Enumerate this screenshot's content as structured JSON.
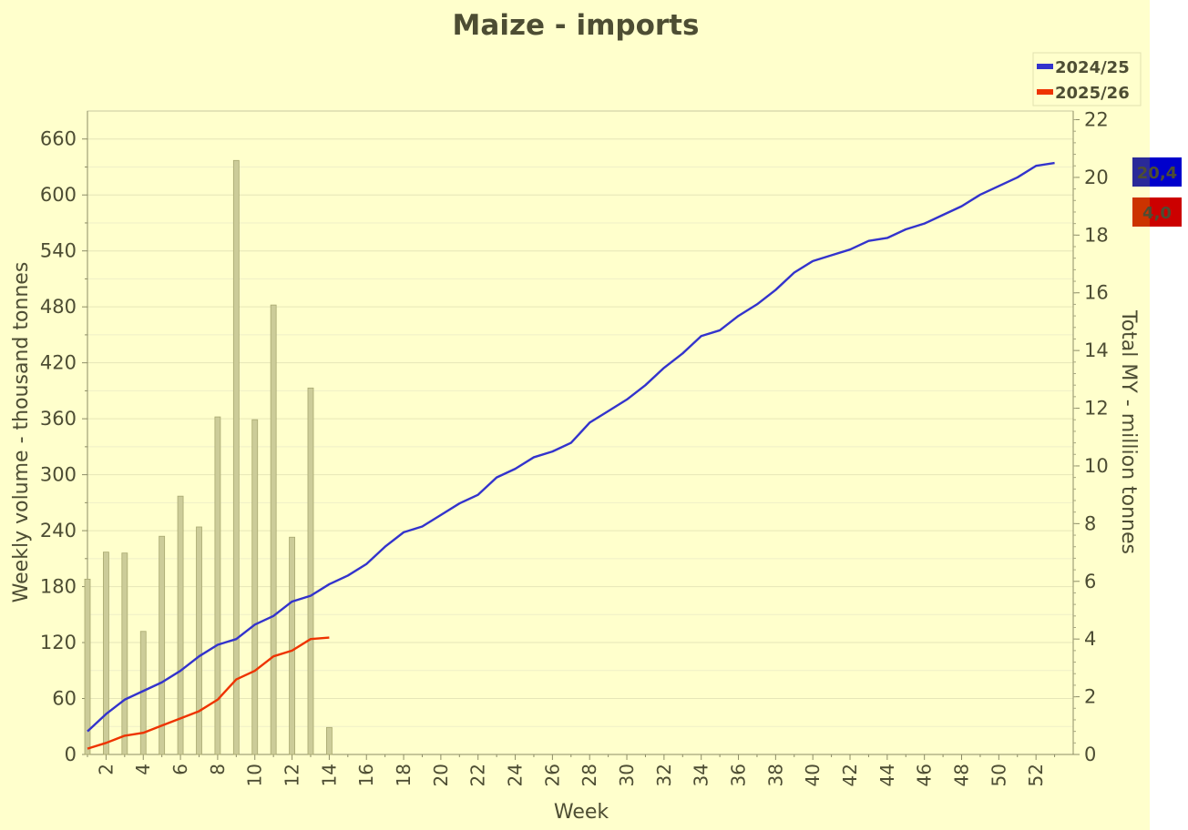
{
  "chart_data": {
    "type": "bar+line",
    "title": "Maize - imports",
    "xlabel": "Week",
    "ylabel_left": "Weekly volume - thousand tonnes",
    "ylabel_right": "Total MY - million tonnes",
    "x_ticks": [
      "2",
      "4",
      "6",
      "8",
      "10",
      "12",
      "14",
      "16",
      "18",
      "20",
      "22",
      "24",
      "26",
      "28",
      "30",
      "32",
      "34",
      "36",
      "38",
      "40",
      "42",
      "44",
      "46",
      "48",
      "50",
      "52"
    ],
    "y_left_ticks": [
      "0",
      "60",
      "120",
      "180",
      "240",
      "300",
      "360",
      "420",
      "480",
      "540",
      "600",
      "660"
    ],
    "y_right_ticks": [
      "0",
      "2",
      "4",
      "6",
      "8",
      "10",
      "12",
      "14",
      "16",
      "18",
      "20",
      "22"
    ],
    "ylim_left": [
      0,
      690
    ],
    "ylim_right": [
      0,
      22.3
    ],
    "weeks": [
      1,
      2,
      3,
      4,
      5,
      6,
      7,
      8,
      9,
      10,
      11,
      12,
      13,
      14,
      15,
      16,
      17,
      18,
      19,
      20,
      21,
      22,
      23,
      24,
      25,
      26,
      27,
      28,
      29,
      30,
      31,
      32,
      33,
      34,
      35,
      36,
      37,
      38,
      39,
      40,
      41,
      42,
      43,
      44,
      45,
      46,
      47,
      48,
      49,
      50,
      51,
      52,
      53
    ],
    "bars": {
      "name": "2025/26 weekly",
      "weeks": [
        1,
        2,
        3,
        4,
        5,
        6,
        7,
        8,
        9,
        10,
        11,
        12,
        13,
        14
      ],
      "values": [
        188,
        217,
        216,
        132,
        234,
        277,
        244,
        362,
        637,
        359,
        482,
        233,
        393,
        29
      ],
      "color": "#cccc99"
    },
    "series": [
      {
        "name": "2024/25",
        "color": "#3333cc",
        "values": [
          0.8,
          1.4,
          1.9,
          2.2,
          2.5,
          2.9,
          3.4,
          3.8,
          4.0,
          4.5,
          4.8,
          5.3,
          5.5,
          5.9,
          6.2,
          6.6,
          7.2,
          7.7,
          7.9,
          8.3,
          8.7,
          9.0,
          9.6,
          9.9,
          10.3,
          10.5,
          10.8,
          11.5,
          11.9,
          12.3,
          12.8,
          13.4,
          13.9,
          14.5,
          14.7,
          15.2,
          15.6,
          16.1,
          16.7,
          17.1,
          17.3,
          17.5,
          17.8,
          17.9,
          18.2,
          18.4,
          18.7,
          19.0,
          19.4,
          19.7,
          20.0,
          20.4,
          20.5
        ],
        "marker_label": "20,4"
      },
      {
        "name": "2025/26",
        "color": "#ee3300",
        "values": [
          0.2,
          0.4,
          0.65,
          0.75,
          1.0,
          1.25,
          1.5,
          1.9,
          2.6,
          2.9,
          3.4,
          3.6,
          4.0,
          4.05
        ],
        "marker_label": "4,0"
      }
    ],
    "legend": {
      "placement": "top-right"
    },
    "grid": true
  }
}
